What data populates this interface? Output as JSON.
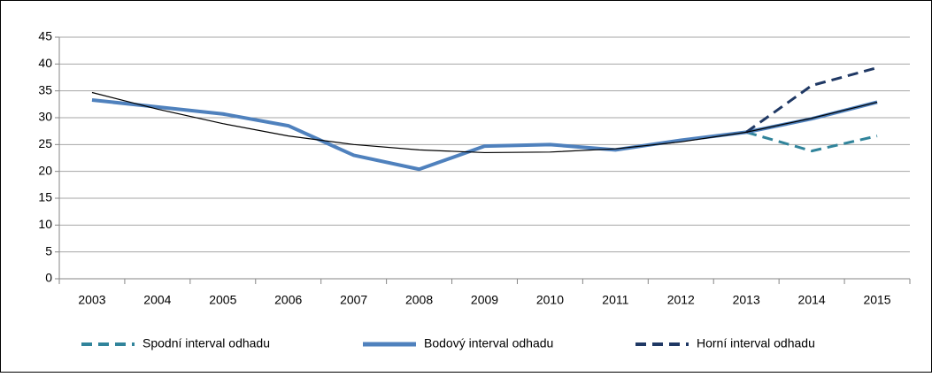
{
  "chart_data": {
    "type": "line",
    "categories": [
      "2003",
      "2004",
      "2005",
      "2006",
      "2007",
      "2008",
      "2009",
      "2010",
      "2011",
      "2012",
      "2013",
      "2014",
      "2015"
    ],
    "series": [
      {
        "name": "Spodní interval odhadu",
        "color": "#31849b",
        "dash": true,
        "width": 3,
        "values": [
          null,
          null,
          null,
          null,
          null,
          null,
          null,
          null,
          null,
          null,
          27.3,
          23.8,
          26.6
        ]
      },
      {
        "name": "Bodový interval odhadu",
        "color": "#4f81bd",
        "dash": false,
        "width": 4,
        "values": [
          33.3,
          32,
          30.7,
          28.5,
          23,
          20.4,
          24.7,
          25,
          24,
          25.8,
          27.3,
          29.8,
          32.9
        ]
      },
      {
        "name": "Horní interval odhadu",
        "color": "#1f3864",
        "dash": true,
        "width": 3,
        "values": [
          null,
          null,
          null,
          null,
          null,
          null,
          null,
          null,
          null,
          null,
          27.3,
          36,
          39.3
        ]
      }
    ],
    "trend": {
      "color": "#000000",
      "values": [
        34.7,
        31.6,
        28.9,
        26.6,
        25,
        24,
        23.5,
        23.6,
        24.2,
        25.5,
        27.3,
        29.9,
        32.9
      ]
    },
    "ylim": [
      0,
      45
    ],
    "yticks": [
      0,
      5,
      10,
      15,
      20,
      25,
      30,
      35,
      40,
      45
    ],
    "grid": true,
    "legend": "bottom"
  }
}
